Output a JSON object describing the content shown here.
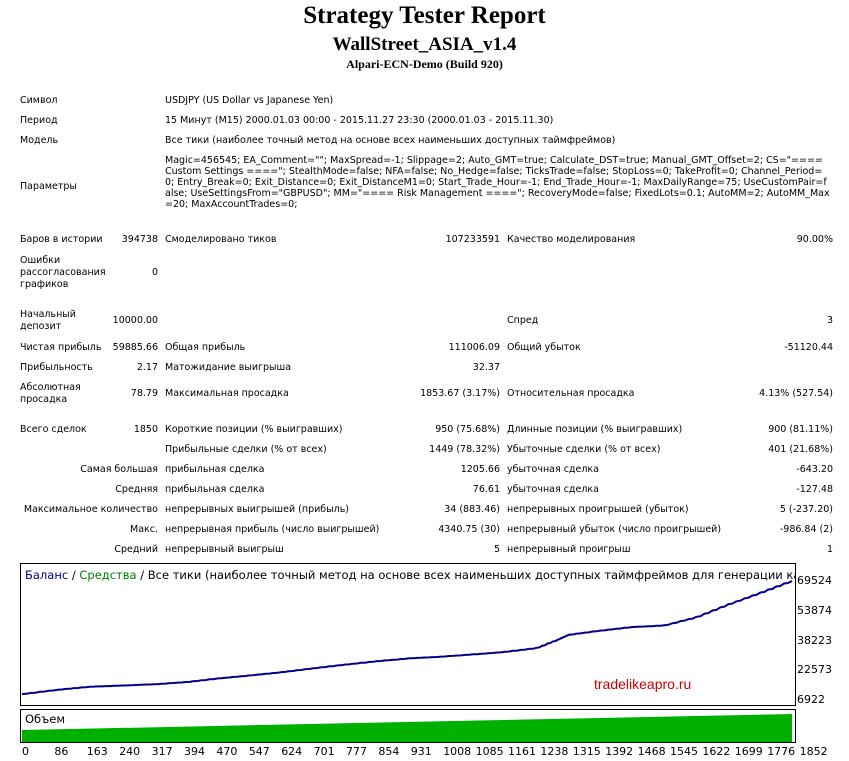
{
  "header": {
    "title": "Strategy Tester Report",
    "ea": "WallStreet_ASIA_v1.4",
    "server": "Alpari-ECN-Demo (Build 920)"
  },
  "info": {
    "symbol_label": "Символ",
    "symbol_value": "USDJPY (US Dollar vs Japanese Yen)",
    "period_label": "Период",
    "period_value": "15 Минут (M15) 2000.01.03 00:00 - 2015.11.27 23:30 (2000.01.03 - 2015.11.30)",
    "model_label": "Модель",
    "model_value": "Все тики (наиболее точный метод на основе всех наименьших доступных таймфреймов)",
    "params_label": "Параметры",
    "params_value": "Magic=456545; EA_Comment=\"\"; MaxSpread=-1; Slippage=2; Auto_GMT=true; Calculate_DST=true; Manual_GMT_Offset=2; CS=\"==== Custom Settings ====\"; StealthMode=false; NFA=false; No_Hedge=false; TicksTrade=false; StopLoss=0; TakeProfit=0; Channel_Period=0; Entry_Break=0; Exit_Distance=0; Exit_DistanceM1=0; Start_Trade_Hour=-1; End_Trade_Hour=-1; MaxDailyRange=75; UseCustomPair=false; UseSettingsFrom=\"GBPUSD\"; MM=\"==== Risk Management ====\"; RecoveryMode=false; FixedLots=0.1; AutoMM=2; AutoMM_Max=20; MaxAccountTrades=0;"
  },
  "stats": {
    "bars_label": "Баров в истории",
    "bars_value": "394738",
    "ticks_label": "Смоделировано тиков",
    "ticks_value": "107233591",
    "quality_label": "Качество моделирования",
    "quality_value": "90.00%",
    "errors_label": "Ошибки рассогласования графиков",
    "errors_value": "0",
    "deposit_label": "Начальный депозит",
    "deposit_value": "10000.00",
    "spread_label": "Спред",
    "spread_value": "3",
    "net_label": "Чистая прибыль",
    "net_value": "59885.66",
    "gross_profit_label": "Общая прибыль",
    "gross_profit_value": "111006.09",
    "gross_loss_label": "Общий убыток",
    "gross_loss_value": "-51120.44",
    "pf_label": "Прибыльность",
    "pf_value": "2.17",
    "exp_label": "Матожидание выигрыша",
    "exp_value": "32.37",
    "abs_dd_label": "Абсолютная просадка",
    "abs_dd_value": "78.79",
    "max_dd_label": "Максимальная просадка",
    "max_dd_value": "1853.67 (3.17%)",
    "rel_dd_label": "Относительная просадка",
    "rel_dd_value": "4.13% (527.54)",
    "trades_label": "Всего сделок",
    "trades_value": "1850",
    "short_label": "Короткие позиции (% выигравших)",
    "short_value": "950 (75.68%)",
    "long_label": "Длинные позиции (% выигравших)",
    "long_value": "900 (81.11%)",
    "profit_trades_label": "Прибыльные сделки (% от всех)",
    "profit_trades_value": "1449 (78.32%)",
    "loss_trades_label": "Убыточные сделки (% от всех)",
    "loss_trades_value": "401 (21.68%)",
    "largest_label": "Самая большая",
    "largest_p_label": "прибыльная сделка",
    "largest_p_value": "1205.66",
    "largest_l_label": "убыточная сделка",
    "largest_l_value": "-643.20",
    "avg_label": "Средняя",
    "avg_p_label": "прибыльная сделка",
    "avg_p_value": "76.61",
    "avg_l_label": "убыточная сделка",
    "avg_l_value": "-127.48",
    "maxcount_label": "Максимальное количество",
    "maxcount_w_label": "непрерывных выигрышей (прибыль)",
    "maxcount_w_value": "34 (883.46)",
    "maxcount_l_label": "непрерывных проигрышей (убыток)",
    "maxcount_l_value": "5 (-237.20)",
    "maxval_label": "Макс.",
    "maxval_w_label": "непрерывная прибыль (число выигрышей)",
    "maxval_w_value": "4340.75 (30)",
    "maxval_l_label": "непрерывный убыток (число проигрышей)",
    "maxval_l_value": "-986.84 (2)",
    "avgcons_label": "Средний",
    "avgcons_w_label": "непрерывный выигрыш",
    "avgcons_w_value": "5",
    "avgcons_l_label": "непрерывный проигрыш",
    "avgcons_l_value": "1"
  },
  "chart_data": {
    "type": "line",
    "legend": {
      "balance": "Баланс",
      "sep1": " / ",
      "equity": "Средства",
      "rest": " / Все тики (наиболее точный метод на основе всех наименьших доступных таймфреймов для генерации каждого"
    },
    "volume_label": "Объем",
    "watermark": "tradelikeapro.ru",
    "yticks": [
      "69524",
      "53874",
      "38223",
      "22573",
      "6922"
    ],
    "ytick_values": [
      69524,
      53874,
      38223,
      22573,
      6922
    ],
    "ylim": [
      6922,
      69524
    ],
    "xticks": [
      "0",
      "86",
      "163",
      "240",
      "317",
      "394",
      "470",
      "547",
      "624",
      "701",
      "777",
      "854",
      "931",
      "1008",
      "1085",
      "1161",
      "1238",
      "1315",
      "1392",
      "1468",
      "1545",
      "1622",
      "1699",
      "1776",
      "1852"
    ],
    "xlim": [
      0,
      1852
    ],
    "colors": {
      "balance": "#00008b",
      "equity": "#008000",
      "volume": "#00b000"
    },
    "series": [
      {
        "name": "Баланс",
        "x": [
          0,
          86,
          163,
          240,
          317,
          394,
          470,
          547,
          624,
          701,
          777,
          854,
          931,
          1008,
          1085,
          1161,
          1238,
          1290,
          1315,
          1392,
          1468,
          1545,
          1622,
          1699,
          1776,
          1852
        ],
        "values": [
          10000,
          12300,
          13900,
          14500,
          15200,
          16300,
          18200,
          19800,
          21500,
          23600,
          25500,
          27300,
          28800,
          29700,
          30900,
          32200,
          34200,
          38700,
          41200,
          43400,
          45300,
          46100,
          50400,
          57100,
          63200,
          69524
        ]
      }
    ]
  }
}
